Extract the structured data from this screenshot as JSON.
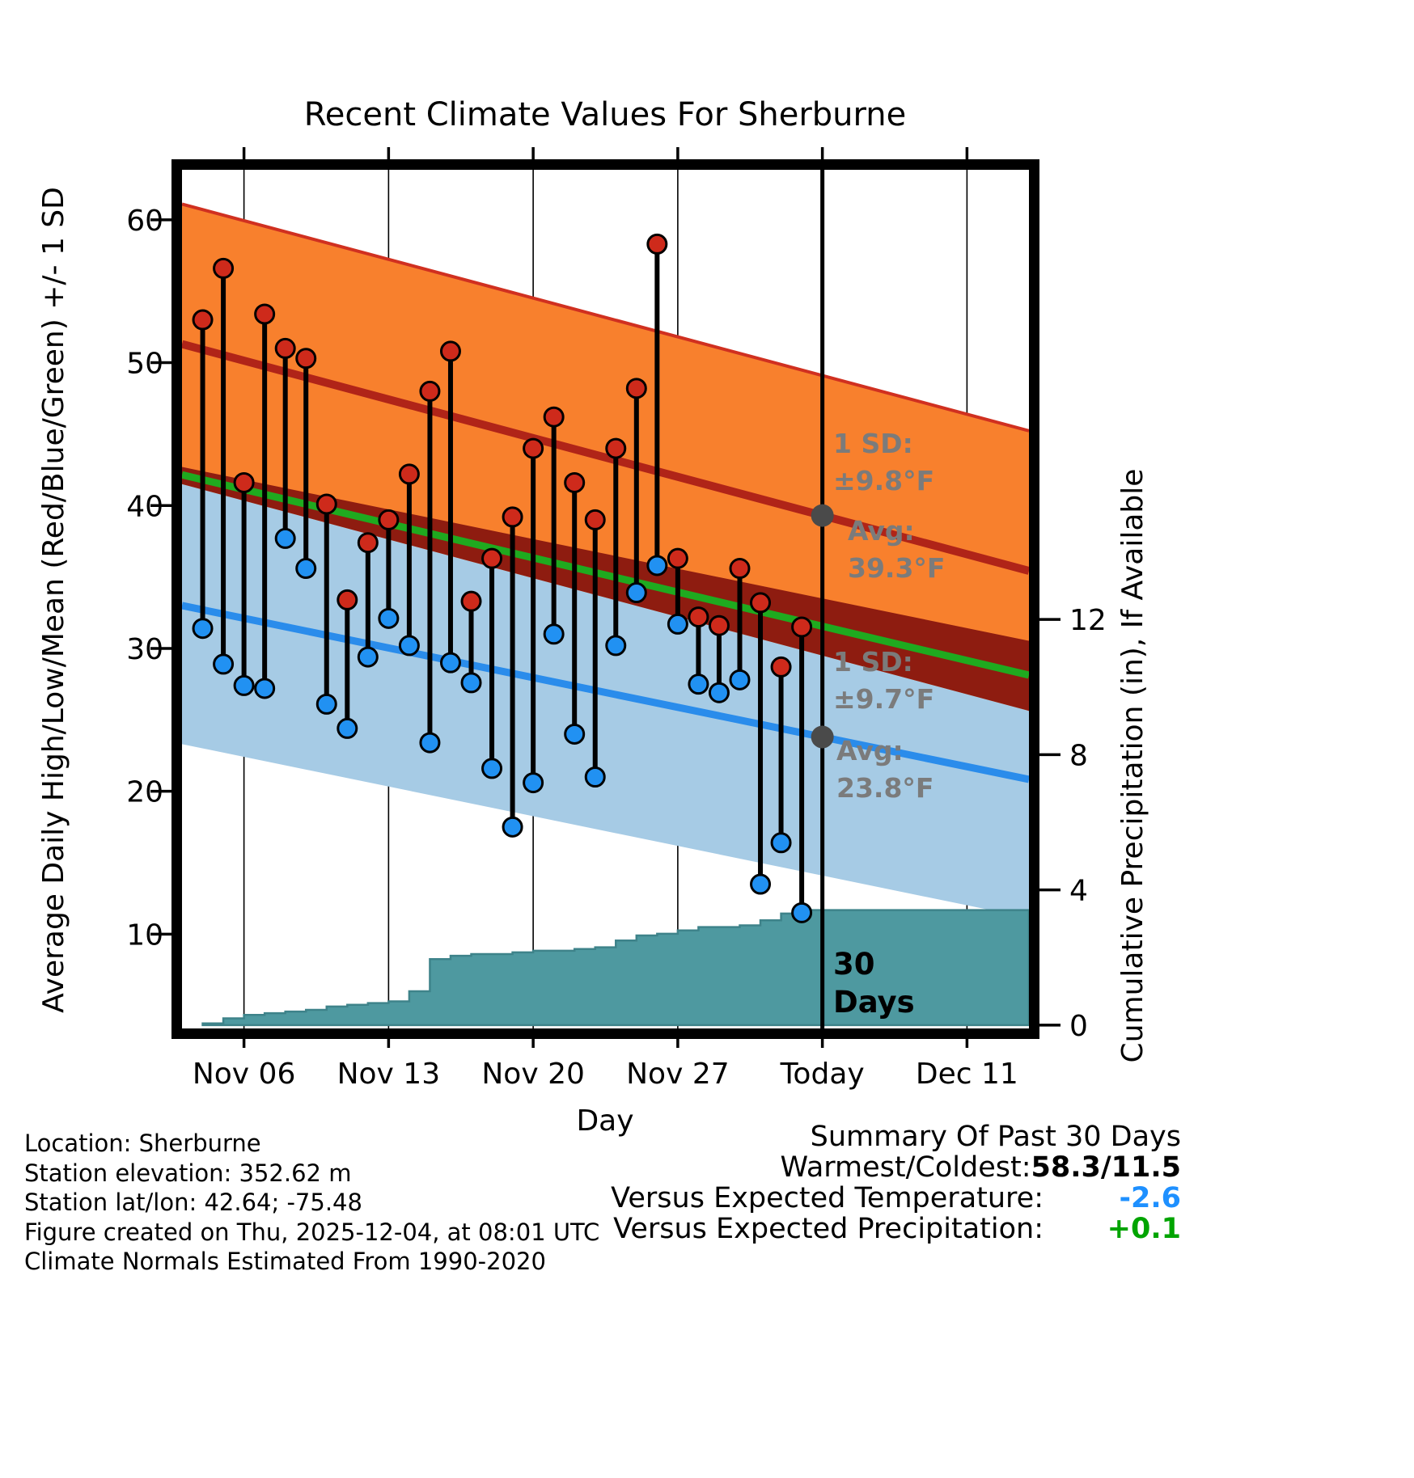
{
  "chart_data": {
    "type": "line",
    "title": "Recent Climate Values For Sherburne",
    "xlabel": "Day",
    "ylabel_left": "Average Daily High/Low/Mean (Red/Blue/Green) +/- 1 SD",
    "ylabel_right": "Cumulative Precipitation (in), If Available",
    "ylim_left": [
      3.4,
      63.5
    ],
    "ylim_right": [
      -0.1,
      25.3
    ],
    "left_ticks": [
      10,
      20,
      30,
      40,
      50,
      60
    ],
    "right_ticks": [
      0,
      4,
      8,
      12
    ],
    "x_days_total": 41,
    "x_day0_date": "Nov 03",
    "x_ticks": [
      {
        "day": 3,
        "label": "Nov 06"
      },
      {
        "day": 10,
        "label": "Nov 13"
      },
      {
        "day": 17,
        "label": "Nov 20"
      },
      {
        "day": 24,
        "label": "Nov 27"
      },
      {
        "day": 31,
        "label": "Today"
      },
      {
        "day": 38,
        "label": "Dec 11"
      }
    ],
    "daily": {
      "start_day": 1,
      "start_date": "Nov 04",
      "end_date": "Dec 03",
      "high": [
        53.0,
        56.6,
        41.6,
        53.4,
        51.0,
        50.3,
        40.1,
        33.4,
        37.4,
        39.0,
        42.2,
        48.0,
        50.8,
        33.3,
        36.3,
        39.2,
        44.0,
        46.2,
        41.6,
        39.0,
        44.0,
        48.2,
        58.3,
        36.3,
        32.2,
        31.6,
        35.6,
        33.2,
        28.7,
        31.5
      ],
      "low": [
        31.4,
        28.9,
        27.4,
        27.2,
        37.7,
        35.6,
        26.1,
        24.4,
        29.4,
        32.1,
        30.2,
        23.4,
        29.0,
        27.6,
        21.6,
        17.5,
        20.6,
        31.0,
        24.0,
        21.0,
        30.2,
        33.9,
        35.8,
        31.7,
        27.5,
        26.9,
        27.8,
        13.5,
        16.4,
        11.5
      ]
    },
    "normals": {
      "today_day": 31,
      "high": {
        "avg_day0": 51.3,
        "avg_today": 39.3,
        "sd": 9.8
      },
      "low": {
        "avg_day0": 33.0,
        "avg_today": 23.8,
        "sd": 9.7
      }
    },
    "precip_cumulative": {
      "start_day": 1,
      "values": [
        0.05,
        0.2,
        0.3,
        0.35,
        0.4,
        0.45,
        0.55,
        0.6,
        0.65,
        0.7,
        1.0,
        1.95,
        2.05,
        2.1,
        2.1,
        2.15,
        2.2,
        2.2,
        2.25,
        2.3,
        2.5,
        2.65,
        2.7,
        2.8,
        2.9,
        2.9,
        2.95,
        3.1,
        3.3,
        3.4
      ]
    },
    "annotations": {
      "high_sd_1": "1 SD:",
      "high_sd_2": "±9.8°F",
      "high_avg_1": "Avg:",
      "high_avg_2": "39.3°F",
      "low_sd_1": "1 SD:",
      "low_sd_2": "±9.7°F",
      "low_avg_1": "Avg:",
      "low_avg_2": "23.8°F",
      "period_1": "30",
      "period_2": "Days"
    }
  },
  "colors": {
    "band_high": "#F8802D",
    "band_low": "#A6CBE5",
    "overlap": "#8E1C10",
    "line_high_top": "#D03020",
    "line_high_avg": "#B02418",
    "line_mean": "#1FAA1F",
    "line_low_avg": "#2A8CEB",
    "dot_high": "#CE2A1B",
    "dot_low": "#2191F2",
    "precip_fill": "#4E99A0",
    "precip_edge": "#3E838A",
    "marker_gray": "#4A4A4A",
    "annotation_gray": "#7B7B7B",
    "vs_temp_value": "#1E90FF",
    "vs_precip_value": "#00A400"
  },
  "footer": {
    "location": "Location: Sherburne",
    "elevation": "Station elevation: 352.62 m",
    "latlon": "Station lat/lon: 42.64; -75.48",
    "created": "Figure created on Thu, 2025-12-04, at 08:01 UTC",
    "normals": "Climate Normals Estimated From 1990-2020"
  },
  "summary": {
    "title": "Summary Of Past 30 Days",
    "warmest_coldest_label": "Warmest/Coldest:",
    "warmest_coldest_value": "58.3/11.5",
    "vs_temperature_label": "Versus Expected Temperature:",
    "vs_temperature_value": "-2.6",
    "vs_precipitation_label": "Versus Expected Precipitation:",
    "vs_precipitation_value": "+0.1"
  }
}
